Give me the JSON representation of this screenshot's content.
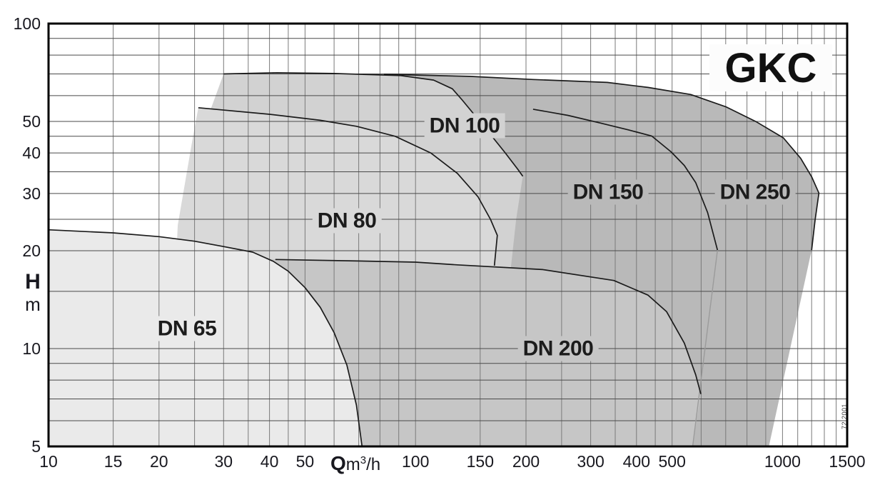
{
  "title": "GKC",
  "watermark": "72.2001",
  "axes": {
    "x": {
      "symbol": "Q",
      "unit_pre": "m",
      "unit_sup": "3",
      "unit_post": "/h",
      "min": 10,
      "max": 1500,
      "scale": "log",
      "labeled_ticks": [
        10,
        15,
        20,
        30,
        40,
        50,
        100,
        150,
        200,
        300,
        400,
        500,
        1000,
        1500
      ],
      "gridlines": [
        15,
        20,
        25,
        30,
        35,
        40,
        45,
        50,
        60,
        70,
        80,
        90,
        100,
        150,
        200,
        250,
        300,
        350,
        400,
        450,
        500,
        600,
        700,
        800,
        900,
        1000,
        1100,
        1200,
        1300,
        1400
      ]
    },
    "y": {
      "symbol": "H",
      "unit": "m",
      "min": 5,
      "max": 100,
      "scale": "log",
      "labeled_ticks": [
        100,
        50,
        40,
        30,
        20,
        10,
        5
      ],
      "gridlines": [
        6,
        7,
        8,
        9,
        10,
        15,
        20,
        25,
        30,
        35,
        40,
        45,
        50,
        60,
        70,
        80,
        90
      ]
    }
  },
  "chart_data": {
    "type": "area",
    "title": "GKC",
    "xlabel": "Q m3/h",
    "ylabel": "H m",
    "x_scale": "log",
    "y_scale": "log",
    "xlim": [
      10,
      1500
    ],
    "ylim": [
      5,
      100
    ],
    "legend_position": "none",
    "grid": true,
    "regions": [
      {
        "label": "DN 65",
        "q_range": [
          10,
          71
        ],
        "h_range": [
          5,
          23.2
        ]
      },
      {
        "label": "DN 80",
        "q_range": [
          26,
          167
        ],
        "h_range": [
          18,
          55
        ]
      },
      {
        "label": "DN 100",
        "q_range": [
          30,
          196
        ],
        "h_range": [
          18,
          70
        ]
      },
      {
        "label": "DN 150",
        "q_range": [
          82,
          665
        ],
        "h_range": [
          5,
          70
        ]
      },
      {
        "label": "DN 200",
        "q_range": [
          41,
          600
        ],
        "h_range": [
          5,
          18.9
        ]
      },
      {
        "label": "DN 250",
        "q_range": [
          209,
          1256
        ],
        "h_range": [
          5,
          66
        ]
      }
    ],
    "labels": [
      {
        "text": "DN 65",
        "q": 23.8,
        "h": 11.5,
        "bg": "#eaeaea"
      },
      {
        "text": "DN 80",
        "q": 65,
        "h": 24.7,
        "bg": "#d9d9d9"
      },
      {
        "text": "DN 100",
        "q": 136,
        "h": 48.5,
        "bg": "#d2d2d2"
      },
      {
        "text": "DN 150",
        "q": 334,
        "h": 30.3,
        "bg": "#b9b9b9"
      },
      {
        "text": "DN 250",
        "q": 843,
        "h": 30.3,
        "bg": "#b9b9b9"
      },
      {
        "text": "DN 200",
        "q": 245,
        "h": 10.0,
        "bg": "#c6c6c6"
      }
    ],
    "shapes": [
      {
        "name": "dn250-envelope",
        "fill": "#b9b9b9",
        "fill_pts": [
          [
            82,
            5
          ],
          [
            82,
            69.8
          ],
          [
            140,
            68.8
          ],
          [
            209,
            67.3
          ],
          [
            333,
            65.9
          ],
          [
            430,
            63.6
          ],
          [
            562,
            60.5
          ],
          [
            700,
            55.5
          ],
          [
            850,
            49.8
          ],
          [
            1005,
            44.5
          ],
          [
            1120,
            38.5
          ],
          [
            1200,
            33.8
          ],
          [
            1256,
            30.1
          ],
          [
            1226,
            24.8
          ],
          [
            1200,
            20.1
          ],
          [
            918,
            5
          ]
        ],
        "stroke_pts": [
          [
            82,
            69.8
          ],
          [
            140,
            68.8
          ],
          [
            209,
            67.3
          ],
          [
            333,
            65.9
          ],
          [
            430,
            63.6
          ],
          [
            562,
            60.5
          ],
          [
            700,
            55.5
          ],
          [
            850,
            49.8
          ],
          [
            1005,
            44.5
          ],
          [
            1120,
            38.5
          ],
          [
            1200,
            33.8
          ],
          [
            1256,
            30.1
          ],
          [
            1226,
            24.8
          ],
          [
            1200,
            20.1
          ]
        ]
      },
      {
        "name": "dn150-right-lower-edge",
        "fill": null,
        "stroke_color": "#9b9b9b",
        "stroke_width": 1.4,
        "stroke_pts": [
          [
            665,
            20.1
          ],
          [
            569,
            5
          ]
        ]
      },
      {
        "name": "dn150-boundary",
        "fill": null,
        "stroke_pts": [
          [
            209,
            54.5
          ],
          [
            260,
            52.2
          ],
          [
            320,
            49.4
          ],
          [
            380,
            47.1
          ],
          [
            440,
            45.1
          ],
          [
            497,
            40.3
          ],
          [
            540,
            36.6
          ],
          [
            580,
            32.4
          ],
          [
            625,
            26.2
          ],
          [
            665,
            20.1
          ]
        ]
      },
      {
        "name": "dn100-envelope",
        "fill": "#d2d2d2",
        "fill_pts": [
          [
            30,
            70
          ],
          [
            42,
            70.6
          ],
          [
            60,
            70.2
          ],
          [
            91,
            69.2
          ],
          [
            112,
            67
          ],
          [
            126,
            63
          ],
          [
            134,
            58.2
          ],
          [
            152,
            49
          ],
          [
            175,
            40.2
          ],
          [
            190,
            35.6
          ],
          [
            196,
            33.9
          ],
          [
            188,
            25
          ],
          [
            182,
            17.9
          ],
          [
            178,
            5
          ],
          [
            22,
            5
          ],
          [
            23.1,
            24
          ],
          [
            26,
            45
          ]
        ],
        "stroke_pts": [
          [
            30,
            70
          ],
          [
            42,
            70.6
          ],
          [
            60,
            70.2
          ],
          [
            91,
            69.2
          ],
          [
            112,
            67
          ],
          [
            126,
            63
          ],
          [
            134,
            58.2
          ],
          [
            152,
            49
          ],
          [
            175,
            40.2
          ],
          [
            190,
            35.6
          ],
          [
            196,
            33.9
          ]
        ]
      },
      {
        "name": "dn80-envelope",
        "fill": "#d9d9d9",
        "fill_pts": [
          [
            25.6,
            55.1
          ],
          [
            40,
            52.6
          ],
          [
            55,
            50.4
          ],
          [
            69,
            48.3
          ],
          [
            88,
            45
          ],
          [
            110,
            40
          ],
          [
            130,
            34.6
          ],
          [
            148,
            29.3
          ],
          [
            160,
            25
          ],
          [
            167,
            22.3
          ],
          [
            164,
            18
          ],
          [
            161,
            5
          ],
          [
            21,
            5
          ],
          [
            22.5,
            24
          ],
          [
            24.5,
            42
          ]
        ],
        "stroke_pts": [
          [
            25.6,
            55.1
          ],
          [
            40,
            52.6
          ],
          [
            55,
            50.4
          ],
          [
            69,
            48.3
          ],
          [
            88,
            45
          ],
          [
            110,
            40
          ],
          [
            130,
            34.6
          ],
          [
            148,
            29.3
          ],
          [
            160,
            25
          ],
          [
            167,
            22.3
          ],
          [
            164,
            18
          ]
        ]
      },
      {
        "name": "dn200-envelope",
        "fill": "#c6c6c6",
        "fill_pts": [
          [
            40,
            18.85
          ],
          [
            70,
            18.6
          ],
          [
            100,
            18.45
          ],
          [
            130,
            18.1
          ],
          [
            222,
            17.5
          ],
          [
            347,
            16.2
          ],
          [
            430,
            14.6
          ],
          [
            483,
            13.0
          ],
          [
            540,
            10.4
          ],
          [
            580,
            8.3
          ],
          [
            599,
            7.25
          ],
          [
            569,
            5
          ],
          [
            40,
            5
          ]
        ],
        "stroke_pts": [
          [
            41.5,
            18.8
          ],
          [
            70,
            18.6
          ],
          [
            100,
            18.45
          ],
          [
            130,
            18.1
          ],
          [
            222,
            17.5
          ],
          [
            347,
            16.2
          ],
          [
            430,
            14.6
          ],
          [
            483,
            13.0
          ],
          [
            540,
            10.4
          ],
          [
            580,
            8.3
          ],
          [
            599,
            7.25
          ]
        ]
      },
      {
        "name": "dn65-envelope",
        "fill": "#eaeaea",
        "fill_pts": [
          [
            10,
            23.2
          ],
          [
            15,
            22.7
          ],
          [
            20,
            22.1
          ],
          [
            25,
            21.4
          ],
          [
            30,
            20.6
          ],
          [
            36,
            19.8
          ],
          [
            41,
            18.55
          ],
          [
            45,
            17.3
          ],
          [
            50,
            15.4
          ],
          [
            55,
            13.4
          ],
          [
            60,
            11.2
          ],
          [
            65,
            8.9
          ],
          [
            69,
            6.7
          ],
          [
            71.5,
            5
          ],
          [
            10,
            5
          ]
        ],
        "stroke_pts": [
          [
            10,
            23.2
          ],
          [
            15,
            22.7
          ],
          [
            20,
            22.1
          ],
          [
            25,
            21.4
          ],
          [
            30,
            20.6
          ],
          [
            36,
            19.8
          ],
          [
            41,
            18.55
          ],
          [
            45,
            17.3
          ],
          [
            50,
            15.4
          ],
          [
            55,
            13.4
          ],
          [
            60,
            11.2
          ],
          [
            65,
            8.9
          ],
          [
            69,
            6.7
          ],
          [
            71.5,
            5
          ]
        ]
      }
    ],
    "colors": {
      "frame": "#000000",
      "grid_vertical": "#7a7a7a",
      "grid_horizontal": "#4a4a4a",
      "region_stroke": "#1b1b1b",
      "tick_text": "#18181f"
    }
  }
}
